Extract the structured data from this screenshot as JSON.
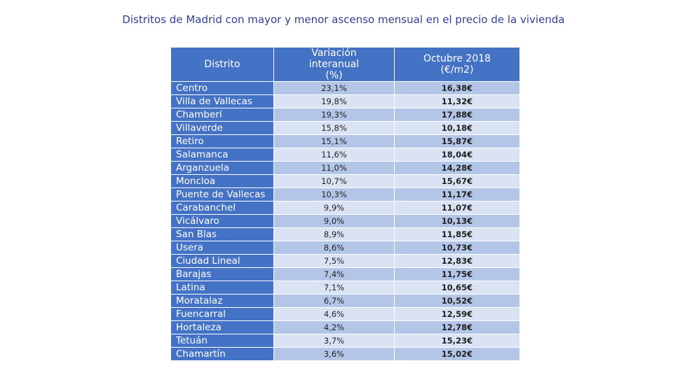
{
  "title": "Distritos de Madrid con mayor y menor ascenso mensual en el precio de la vivienda",
  "table": {
    "headers": [
      "Distrito",
      "Variación interanual (%)",
      "Octubre 2018 (€/m2)"
    ],
    "rows": [
      [
        "Centro",
        "23,1%",
        "16,38€"
      ],
      [
        "Villa de Vallecas",
        "19,8%",
        "11,32€"
      ],
      [
        "Chamberí",
        "19,3%",
        "17,88€"
      ],
      [
        "Villaverde",
        "15,8%",
        "10,18€"
      ],
      [
        "Retiro",
        "15,1%",
        "15,87€"
      ],
      [
        "Salamanca",
        "11,6%",
        "18,04€"
      ],
      [
        "Arganzuela",
        "11,0%",
        "14,28€"
      ],
      [
        "Moncloa",
        "10,7%",
        "15,67€"
      ],
      [
        "Puente de Vallecas",
        "10,3%",
        "11,17€"
      ],
      [
        "Carabanchel",
        "9,9%",
        "11,07€"
      ],
      [
        "Vicálvaro",
        "9,0%",
        "10,13€"
      ],
      [
        "San Blas",
        "8,9%",
        "11,85€"
      ],
      [
        "Usera",
        "8,6%",
        "10,73€"
      ],
      [
        "Ciudad Lineal",
        "7,5%",
        "12,83€"
      ],
      [
        "Barajas",
        "7,4%",
        "11,75€"
      ],
      [
        "Latina",
        "7,1%",
        "10,65€"
      ],
      [
        "Moratalaz",
        "6,7%",
        "10,52€"
      ],
      [
        "Fuencarral",
        "4,6%",
        "12,59€"
      ],
      [
        "Hortaleza",
        "4,2%",
        "12,78€"
      ],
      [
        "Tetuán",
        "3,7%",
        "15,23€"
      ],
      [
        "Chamartín",
        "3,6%",
        "15,02€"
      ]
    ]
  }
}
